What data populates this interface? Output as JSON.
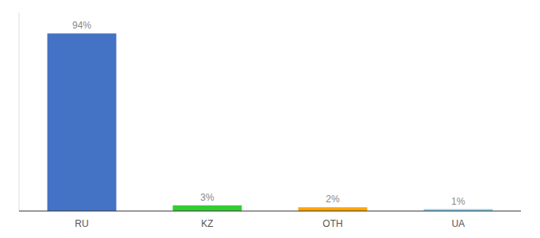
{
  "chart_data": {
    "type": "bar",
    "categories": [
      "RU",
      "KZ",
      "OTH",
      "UA"
    ],
    "values": [
      94,
      3,
      2,
      1
    ],
    "value_labels": [
      "94%",
      "3%",
      "2%",
      "1%"
    ],
    "colors": [
      "#4472C4",
      "#33CC33",
      "#FFA500",
      "#87CEEB"
    ],
    "ylim": [
      0,
      105
    ],
    "data_labels": true,
    "tick_labels": "x"
  }
}
